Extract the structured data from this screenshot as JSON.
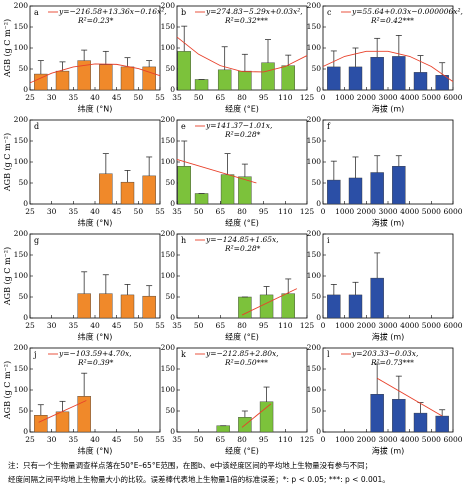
{
  "chart_data": [
    {
      "type": "bar",
      "label": "a",
      "ylabel": "AGB (g C m⁻²)",
      "xlabel": "纬度 (°N)",
      "color": "#f0892a",
      "x": [
        27.5,
        32.5,
        37.5,
        42.5,
        47.5,
        52.5
      ],
      "values": [
        38,
        45,
        70,
        60,
        55,
        55
      ],
      "errors": [
        32,
        22,
        25,
        32,
        22,
        15
      ],
      "xlim": [
        25,
        55
      ],
      "xticks": [
        25,
        30,
        35,
        40,
        45,
        50,
        55
      ],
      "ylim": [
        0,
        200
      ],
      "yticks": [
        0,
        50,
        100,
        150,
        200
      ],
      "equation": "y=−216.58+13.36x−0.16x²,",
      "r2": "R²=0.23*",
      "trend": {
        "color": "#e8402a",
        "x": [
          25,
          30,
          35,
          40,
          45,
          50,
          55
        ],
        "y": [
          17,
          40,
          55,
          62,
          61,
          51,
          34
        ]
      }
    },
    {
      "type": "bar",
      "label": "b",
      "xlabel": "经度 (°E)",
      "color": "#7cc23b",
      "x": [
        40,
        52,
        68,
        82,
        98,
        112
      ],
      "values": [
        92,
        25,
        48,
        45,
        65,
        58
      ],
      "errors": [
        60,
        0,
        55,
        40,
        55,
        25
      ],
      "xlim": [
        35,
        125
      ],
      "xticks": [
        35,
        50,
        65,
        80,
        95,
        110,
        125
      ],
      "ylim": [
        0,
        200
      ],
      "yticks": [
        0,
        50,
        100,
        150,
        200
      ],
      "equation": "y=274.83−5.29x+0.03x²,",
      "r2": "R²=0.32***",
      "trend": {
        "color": "#e8402a",
        "x": [
          35,
          50,
          65,
          80,
          95,
          110,
          125
        ],
        "y": [
          126,
          85,
          58,
          44,
          43,
          56,
          82
        ]
      }
    },
    {
      "type": "bar",
      "label": "c",
      "xlabel": "海拔 (m)",
      "color": "#2b4fa6",
      "x": [
        500,
        1500,
        2500,
        3500,
        4500,
        5500
      ],
      "values": [
        55,
        55,
        78,
        80,
        42,
        35
      ],
      "errors": [
        38,
        45,
        45,
        50,
        40,
        30
      ],
      "xlim": [
        0,
        6000
      ],
      "xticks": [
        0,
        1000,
        2000,
        3000,
        4000,
        5000,
        6000
      ],
      "ylim": [
        0,
        200
      ],
      "yticks": [
        0,
        50,
        100,
        150,
        200
      ],
      "equation": "y=55.64+0.03x−0.000006x²,",
      "r2": "R²=0.42***",
      "trend": {
        "color": "#e8402a",
        "x": [
          0,
          1000,
          2000,
          3000,
          4000,
          5000,
          6000
        ],
        "y": [
          56,
          80,
          92,
          92,
          80,
          56,
          20
        ]
      }
    },
    {
      "type": "bar",
      "label": "d",
      "ylabel": "AGB (g C m⁻²)",
      "xlabel": "纬度 (°N)",
      "color": "#f0892a",
      "x": [
        42.5,
        47.5,
        52.5
      ],
      "values": [
        72,
        52,
        67
      ],
      "errors": [
        48,
        28,
        45
      ],
      "xlim": [
        25,
        55
      ],
      "xticks": [
        25,
        30,
        35,
        40,
        45,
        50,
        55
      ],
      "ylim": [
        0,
        200
      ],
      "yticks": [
        0,
        50,
        100,
        150,
        200
      ]
    },
    {
      "type": "bar",
      "label": "e",
      "xlabel": "经度 (°E)",
      "color": "#7cc23b",
      "x": [
        40,
        52,
        70,
        82
      ],
      "values": [
        90,
        25,
        70,
        65
      ],
      "errors": [
        60,
        0,
        50,
        30
      ],
      "xlim": [
        35,
        125
      ],
      "xticks": [
        35,
        50,
        65,
        80,
        95,
        110,
        125
      ],
      "ylim": [
        0,
        200
      ],
      "yticks": [
        0,
        50,
        100,
        150,
        200
      ],
      "equation": "y=141.37−1.01x,",
      "r2": "R²=0.28*",
      "trend": {
        "color": "#e8402a",
        "x": [
          35,
          90
        ],
        "y": [
          106,
          50
        ]
      }
    },
    {
      "type": "bar",
      "label": "f",
      "xlabel": "海拔 (m)",
      "color": "#2b4fa6",
      "x": [
        500,
        1500,
        2500,
        3500
      ],
      "values": [
        57,
        62,
        75,
        90
      ],
      "errors": [
        45,
        50,
        40,
        25
      ],
      "xlim": [
        0,
        6000
      ],
      "xticks": [
        0,
        1000,
        2000,
        3000,
        4000,
        5000,
        6000
      ],
      "ylim": [
        0,
        200
      ],
      "yticks": [
        0,
        50,
        100,
        150,
        200
      ]
    },
    {
      "type": "bar",
      "label": "g",
      "ylabel": "AGB (g C m⁻²)",
      "xlabel": "纬度 (°N)",
      "color": "#f0892a",
      "x": [
        37.5,
        42.5,
        47.5,
        52.5
      ],
      "values": [
        58,
        58,
        55,
        52
      ],
      "errors": [
        52,
        45,
        25,
        25
      ],
      "xlim": [
        25,
        55
      ],
      "xticks": [
        25,
        30,
        35,
        40,
        45,
        50,
        55
      ],
      "ylim": [
        0,
        200
      ],
      "yticks": [
        0,
        50,
        100,
        150,
        200
      ]
    },
    {
      "type": "bar",
      "label": "h",
      "xlabel": "经度 (°E)",
      "color": "#7cc23b",
      "x": [
        82,
        97,
        112
      ],
      "values": [
        50,
        55,
        58
      ],
      "errors": [
        0,
        20,
        35
      ],
      "xlim": [
        35,
        125
      ],
      "xticks": [
        35,
        50,
        65,
        80,
        95,
        110,
        125
      ],
      "ylim": [
        0,
        200
      ],
      "yticks": [
        0,
        50,
        100,
        150,
        200
      ],
      "equation": "y=−124.85+1.65x,",
      "r2": "R²=0.28*",
      "trend": {
        "color": "#e8402a",
        "x": [
          80,
          118
        ],
        "y": [
          7,
          70
        ]
      }
    },
    {
      "type": "bar",
      "label": "i",
      "xlabel": "海拔 (m)",
      "color": "#2b4fa6",
      "x": [
        500,
        1500,
        2500
      ],
      "values": [
        55,
        55,
        95
      ],
      "errors": [
        25,
        30,
        60
      ],
      "xlim": [
        0,
        6000
      ],
      "xticks": [
        0,
        1000,
        2000,
        3000,
        4000,
        5000,
        6000
      ],
      "ylim": [
        0,
        200
      ],
      "yticks": [
        0,
        50,
        100,
        150,
        200
      ]
    },
    {
      "type": "bar",
      "label": "j",
      "ylabel": "AGB (g C m⁻²)",
      "xlabel": "纬度 (°N)",
      "color": "#f0892a",
      "x": [
        27.5,
        32.5,
        37.5
      ],
      "values": [
        40,
        48,
        85
      ],
      "errors": [
        25,
        25,
        55
      ],
      "xlim": [
        25,
        55
      ],
      "xticks": [
        25,
        30,
        35,
        40,
        45,
        50,
        55
      ],
      "ylim": [
        0,
        200
      ],
      "yticks": [
        0,
        50,
        100,
        150,
        200
      ],
      "equation": "y=−103.59+4.70x,",
      "r2": "R²=0.39*",
      "trend": {
        "color": "#e8402a",
        "x": [
          27,
          38
        ],
        "y": [
          23,
          75
        ]
      }
    },
    {
      "type": "bar",
      "label": "k",
      "xlabel": "经度 (°E)",
      "color": "#7cc23b",
      "x": [
        67,
        82,
        97
      ],
      "values": [
        15,
        35,
        72
      ],
      "errors": [
        0,
        15,
        35
      ],
      "xlim": [
        35,
        125
      ],
      "xticks": [
        35,
        50,
        65,
        80,
        95,
        110,
        125
      ],
      "ylim": [
        0,
        200
      ],
      "yticks": [
        0,
        50,
        100,
        150,
        200
      ],
      "equation": "y=−212.85+2.80x,",
      "r2": "R²=0.50***",
      "trend": {
        "color": "#e8402a",
        "x": [
          80,
          100
        ],
        "y": [
          11,
          67
        ]
      }
    },
    {
      "type": "bar",
      "label": "l",
      "xlabel": "海拔 (m)",
      "color": "#2b4fa6",
      "x": [
        2500,
        3500,
        4500,
        5500
      ],
      "values": [
        90,
        78,
        45,
        38
      ],
      "errors": [
        72,
        55,
        25,
        15
      ],
      "xlim": [
        0,
        6000
      ],
      "xticks": [
        0,
        1000,
        2000,
        3000,
        4000,
        5000,
        6000
      ],
      "ylim": [
        0,
        200
      ],
      "yticks": [
        0,
        50,
        100,
        150,
        200
      ],
      "equation": "y=203.33−0.03x,",
      "r2": "R²=0.73***",
      "trend": {
        "color": "#e8402a",
        "x": [
          2500,
          5500
        ],
        "y": [
          128,
          38
        ]
      }
    }
  ],
  "footnote": [
    "注：只有一个生物量调查样点落在50°E–65°E范围，在图b、e中该经度区间的平均地上生物量没有参与不同；",
    "经度间隔之间平均地上生物量大小的比较。误差棒代表地上生物量1倍的标准误差；*: p < 0.05; ***: p < 0.001。"
  ]
}
